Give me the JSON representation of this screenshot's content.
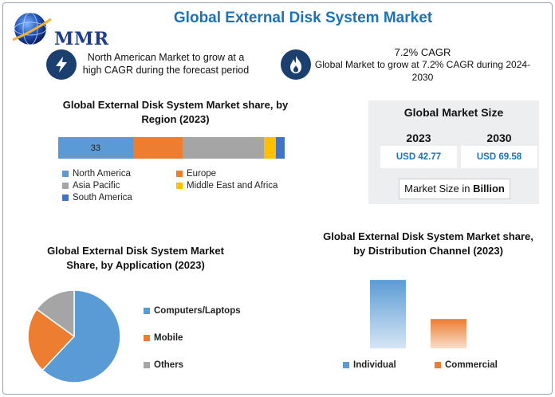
{
  "header": {
    "title": "Global External Disk System Market",
    "logo_text": "MMR"
  },
  "highlights": [
    {
      "icon": "lightning-icon",
      "headline": "",
      "text": "North American Market to grow at a high CAGR during the forecast period"
    },
    {
      "icon": "flame-icon",
      "headline": "7.2% CAGR",
      "text": "Global Market to grow at 7.2% CAGR during 2024-2030"
    }
  ],
  "market_size": {
    "title": "Global Market Size",
    "years": [
      "2023",
      "2030"
    ],
    "values": [
      "USD 42.77",
      "USD 69.58"
    ],
    "unit_prefix": "Market Size in ",
    "unit_emph": "Billion"
  },
  "colors": {
    "blue": "#5b9bd5",
    "orange": "#ed7d31",
    "gray": "#a5a5a5",
    "yellow": "#ffc000",
    "dark_blue": "#4472c4"
  },
  "chart_data": [
    {
      "type": "bar",
      "title": "Global External Disk System Market share, by Region (2023)",
      "orientation": "stacked-horizontal",
      "categories": [
        "North America",
        "Europe",
        "Asia Pacific",
        "Middle East and Africa",
        "South America"
      ],
      "values": [
        33,
        22,
        36,
        5,
        4
      ],
      "data_labels": [
        "33",
        "",
        "",
        "",
        ""
      ],
      "colors": [
        "#5b9bd5",
        "#ed7d31",
        "#a5a5a5",
        "#ffc000",
        "#4472c4"
      ],
      "legend": "bottom"
    },
    {
      "type": "pie",
      "title": "Global External Disk System Market Share, by Application (2023)",
      "categories": [
        "Computers/Laptops",
        "Mobile",
        "Others"
      ],
      "values": [
        62,
        23,
        15
      ],
      "colors": [
        "#5b9bd5",
        "#ed7d31",
        "#a5a5a5"
      ],
      "legend": "right"
    },
    {
      "type": "bar",
      "title": "Global External Disk System Market share, by Distribution Channel (2023)",
      "categories": [
        "Individual",
        "Commercial"
      ],
      "values": [
        70,
        30
      ],
      "colors": [
        "#5b9bd5",
        "#ed7d31"
      ],
      "ylim": [
        0,
        75
      ],
      "legend": "bottom"
    }
  ]
}
